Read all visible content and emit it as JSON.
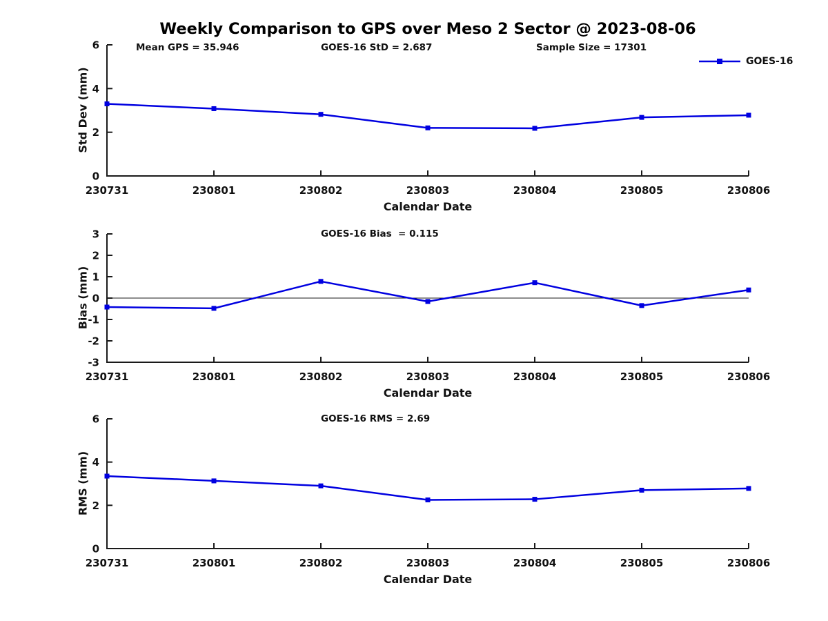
{
  "figure": {
    "title": "Weekly Comparison to GPS over Meso 2 Sector @ 2023-08-06",
    "background": "#ffffff",
    "line_color": "#0000e0",
    "axis_color": "#1a1a1a",
    "legend": {
      "label": "GOES-16",
      "marker": "filled-square",
      "position": "top-right-outside"
    }
  },
  "chart_data": [
    {
      "type": "line",
      "panel": "std-dev",
      "annotations": [
        "Mean GPS = 35.946",
        "GOES-16 StD = 2.687",
        "Sample Size = 17301"
      ],
      "categories": [
        "230731",
        "230801",
        "230802",
        "230803",
        "230804",
        "230805",
        "230806"
      ],
      "series": [
        {
          "name": "GOES-16",
          "values": [
            3.3,
            3.08,
            2.82,
            2.2,
            2.18,
            2.68,
            2.78
          ]
        }
      ],
      "xlabel": "Calendar Date",
      "ylabel": "Std Dev (mm)",
      "ylim": [
        0,
        6
      ],
      "yticks": [
        0,
        2,
        4,
        6
      ],
      "grid": false,
      "marker": "square",
      "zero_line": false
    },
    {
      "type": "line",
      "panel": "bias",
      "annotations": [
        "GOES-16 Bias  = 0.115"
      ],
      "categories": [
        "230731",
        "230801",
        "230802",
        "230803",
        "230804",
        "230805",
        "230806"
      ],
      "series": [
        {
          "name": "GOES-16",
          "values": [
            -0.42,
            -0.48,
            0.78,
            -0.16,
            0.72,
            -0.35,
            0.38
          ]
        }
      ],
      "xlabel": "Calendar Date",
      "ylabel": "Bias (mm)",
      "ylim": [
        -3,
        3
      ],
      "yticks": [
        -3,
        -2,
        -1,
        0,
        1,
        2,
        3
      ],
      "grid": false,
      "marker": "square",
      "zero_line": true
    },
    {
      "type": "line",
      "panel": "rms",
      "annotations": [
        "GOES-16 RMS = 2.69"
      ],
      "categories": [
        "230731",
        "230801",
        "230802",
        "230803",
        "230804",
        "230805",
        "230806"
      ],
      "series": [
        {
          "name": "GOES-16",
          "values": [
            3.35,
            3.13,
            2.9,
            2.25,
            2.28,
            2.7,
            2.78
          ]
        }
      ],
      "xlabel": "Calendar Date",
      "ylabel": "RMS (mm)",
      "ylim": [
        0,
        6
      ],
      "yticks": [
        0,
        2,
        4,
        6
      ],
      "grid": false,
      "marker": "square",
      "zero_line": false
    }
  ]
}
